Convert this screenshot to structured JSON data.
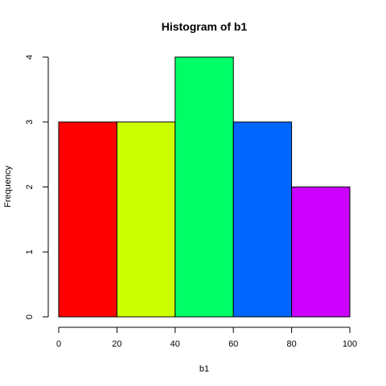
{
  "chart_data": {
    "type": "bar",
    "title": "Histogram of b1",
    "xlabel": "b1",
    "ylabel": "Frequency",
    "bins": [
      {
        "start": 0,
        "end": 20,
        "count": 3,
        "color": "#FF0000"
      },
      {
        "start": 20,
        "end": 40,
        "count": 3,
        "color": "#CCFF00"
      },
      {
        "start": 40,
        "end": 60,
        "count": 4,
        "color": "#00FF66"
      },
      {
        "start": 60,
        "end": 80,
        "count": 3,
        "color": "#0066FF"
      },
      {
        "start": 80,
        "end": 100,
        "count": 2,
        "color": "#CC00FF"
      }
    ],
    "xlim": [
      0,
      100
    ],
    "ylim": [
      0,
      4
    ],
    "x_ticks": [
      "0",
      "20",
      "40",
      "60",
      "80",
      "100"
    ],
    "y_ticks": [
      "0",
      "1",
      "2",
      "3",
      "4"
    ],
    "grid": false,
    "legend": "none"
  }
}
